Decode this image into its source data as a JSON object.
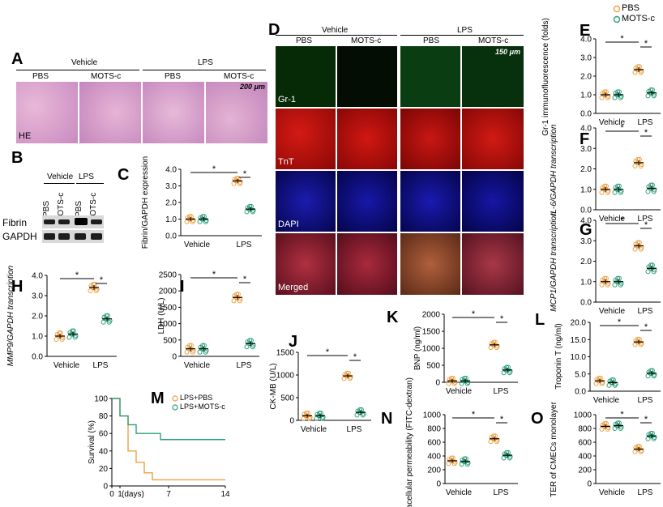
{
  "panelA": {
    "letter": "A",
    "groups": [
      "Vehicle",
      "LPS"
    ],
    "cols": [
      "PBS",
      "MOTS-c",
      "PBS",
      "MOTS-c"
    ],
    "scalebar": "200 μm",
    "stain": "HE"
  },
  "panelB": {
    "letter": "B",
    "groups": [
      "Vehicle",
      "LPS"
    ],
    "cols": [
      "PBS",
      "MOTS-c",
      "PBS",
      "MOTS-c"
    ],
    "rows": [
      "Fibrin",
      "GAPDH"
    ]
  },
  "panelD": {
    "letter": "D",
    "groups": [
      "Vehicle",
      "LPS"
    ],
    "cols": [
      "PBS",
      "MOTS-c",
      "PBS",
      "MOTS-c"
    ],
    "rows": [
      "Gr-1",
      "TnT",
      "DAPI",
      "Merged"
    ],
    "scalebar": "150 μm"
  },
  "legend": {
    "items": [
      "PBS",
      "MOTS-c"
    ],
    "colors": {
      "PBS": "#f0a040",
      "MOTS-c": "#2aa07a"
    }
  },
  "panelM": {
    "letter": "M",
    "legend": [
      "LPS+PBS",
      "LPS+MOTS-c"
    ]
  },
  "chart_data": [
    {
      "id": "C",
      "type": "scatter",
      "ylabel": "Fibrin/GAPDH expression",
      "categories": [
        "Vehicle",
        "LPS"
      ],
      "ylim": [
        0,
        4
      ],
      "yticks": [
        "0.0",
        "1.0",
        "2.0",
        "3.0",
        "4.0"
      ],
      "series": [
        {
          "name": "PBS",
          "values": [
            1.0,
            3.3
          ]
        },
        {
          "name": "MOTS-c",
          "values": [
            1.0,
            1.6
          ]
        }
      ],
      "sig": "*"
    },
    {
      "id": "E",
      "type": "scatter",
      "ylabel": "Gr-1 immunofluorescence (folds)",
      "categories": [
        "Vehicle",
        "LPS"
      ],
      "ylim": [
        0,
        4
      ],
      "yticks": [
        "0.0",
        "1.0",
        "2.0",
        "3.0",
        "4.0"
      ],
      "series": [
        {
          "name": "PBS",
          "values": [
            1.0,
            2.35
          ]
        },
        {
          "name": "MOTS-c",
          "values": [
            1.0,
            1.1
          ]
        }
      ],
      "sig": "*"
    },
    {
      "id": "F",
      "type": "scatter",
      "ylabel": "IL-6/GAPDH transcription",
      "categories": [
        "Vehicle",
        "LPS"
      ],
      "ylim": [
        0,
        4
      ],
      "yticks": [
        "0.0",
        "1.0",
        "2.0",
        "3.0",
        "4.0"
      ],
      "series": [
        {
          "name": "PBS",
          "values": [
            1.0,
            2.3
          ]
        },
        {
          "name": "MOTS-c",
          "values": [
            1.0,
            1.05
          ]
        }
      ],
      "sig": "*"
    },
    {
      "id": "G",
      "type": "scatter",
      "ylabel": "MCP1/GAPDH transcription",
      "categories": [
        "Vehicle",
        "LPS"
      ],
      "ylim": [
        0,
        4
      ],
      "yticks": [
        "0.0",
        "1.0",
        "2.0",
        "3.0",
        "4.0"
      ],
      "series": [
        {
          "name": "PBS",
          "values": [
            1.0,
            2.75
          ]
        },
        {
          "name": "MOTS-c",
          "values": [
            1.0,
            1.65
          ]
        }
      ],
      "sig": "*"
    },
    {
      "id": "H",
      "type": "scatter",
      "ylabel": "MMP9/GAPDH transcription",
      "categories": [
        "Vehicle",
        "LPS"
      ],
      "ylim": [
        0,
        4
      ],
      "yticks": [
        "0.0",
        "1.0",
        "2.0",
        "3.0",
        "4.0"
      ],
      "series": [
        {
          "name": "PBS",
          "values": [
            1.0,
            3.4
          ]
        },
        {
          "name": "MOTS-c",
          "values": [
            1.1,
            1.85
          ]
        }
      ],
      "sig": "*"
    },
    {
      "id": "I",
      "type": "scatter",
      "ylabel": "LDH (U/L)",
      "categories": [
        "Vehicle",
        "LPS"
      ],
      "ylim": [
        0,
        2500
      ],
      "yticks": [
        "0",
        "500",
        "1000",
        "1500",
        "2000",
        "2500"
      ],
      "series": [
        {
          "name": "PBS",
          "values": [
            230,
            1800
          ]
        },
        {
          "name": "MOTS-c",
          "values": [
            230,
            390
          ]
        }
      ],
      "sig": "*"
    },
    {
      "id": "J",
      "type": "scatter",
      "ylabel": "CK-MB (U/L)",
      "categories": [
        "Vehicle",
        "LPS"
      ],
      "ylim": [
        0,
        1500
      ],
      "yticks": [
        "0",
        "500",
        "1000",
        "1500"
      ],
      "series": [
        {
          "name": "PBS",
          "values": [
            100,
            980
          ]
        },
        {
          "name": "MOTS-c",
          "values": [
            100,
            175
          ]
        }
      ],
      "sig": "*"
    },
    {
      "id": "K",
      "type": "scatter",
      "ylabel": "BNP (ng/ml)",
      "categories": [
        "Vehicle",
        "LPS"
      ],
      "ylim": [
        0,
        2000
      ],
      "yticks": [
        "0",
        "500",
        "1000",
        "1500",
        "2000"
      ],
      "series": [
        {
          "name": "PBS",
          "values": [
            40,
            1100
          ]
        },
        {
          "name": "MOTS-c",
          "values": [
            40,
            360
          ]
        }
      ],
      "sig": "*"
    },
    {
      "id": "L",
      "type": "scatter",
      "ylabel": "Troponin T (ng/ml)",
      "categories": [
        "Vehicle",
        "LPS"
      ],
      "ylim": [
        0,
        20
      ],
      "yticks": [
        "0.0",
        "5.0",
        "10.0",
        "15.0",
        "20.0"
      ],
      "series": [
        {
          "name": "PBS",
          "values": [
            3.0,
            14.3
          ]
        },
        {
          "name": "MOTS-c",
          "values": [
            2.5,
            5.2
          ]
        }
      ],
      "sig": "*"
    },
    {
      "id": "N",
      "type": "scatter",
      "ylabel": "Paracellular permeability (FITC-dextran)",
      "categories": [
        "Vehicle",
        "LPS"
      ],
      "ylim": [
        0,
        1000
      ],
      "yticks": [
        "0",
        "200",
        "400",
        "600",
        "800",
        "1000"
      ],
      "series": [
        {
          "name": "PBS",
          "values": [
            330,
            650
          ]
        },
        {
          "name": "MOTS-c",
          "values": [
            320,
            410
          ]
        }
      ],
      "sig": "*"
    },
    {
      "id": "O",
      "type": "scatter",
      "ylabel": "TER of CMECs monolayer",
      "categories": [
        "Vehicle",
        "LPS"
      ],
      "ylim": [
        0,
        1000
      ],
      "yticks": [
        "0",
        "200",
        "400",
        "600",
        "800",
        "1000"
      ],
      "series": [
        {
          "name": "PBS",
          "values": [
            830,
            500
          ]
        },
        {
          "name": "MOTS-c",
          "values": [
            840,
            690
          ]
        }
      ],
      "sig": "*"
    },
    {
      "id": "M",
      "type": "line",
      "ylabel": "Survival (%)",
      "xlabel": "(days)",
      "ylim": [
        0,
        100
      ],
      "yticks": [
        "0",
        "20",
        "40",
        "60",
        "80",
        "100"
      ],
      "xticks": [
        "0",
        "1",
        "7",
        "14"
      ],
      "series": [
        {
          "name": "LPS+PBS",
          "x": [
            0,
            1,
            1,
            2,
            2,
            3,
            3,
            4,
            4,
            5,
            5,
            14
          ],
          "y": [
            100,
            100,
            80,
            80,
            40,
            40,
            27,
            27,
            15,
            15,
            7,
            7
          ]
        },
        {
          "name": "LPS+MOTS-c",
          "x": [
            0,
            1,
            1,
            2,
            2,
            3,
            3,
            6,
            6,
            14
          ],
          "y": [
            100,
            100,
            80,
            80,
            70,
            70,
            60,
            60,
            53,
            53
          ]
        }
      ]
    }
  ]
}
